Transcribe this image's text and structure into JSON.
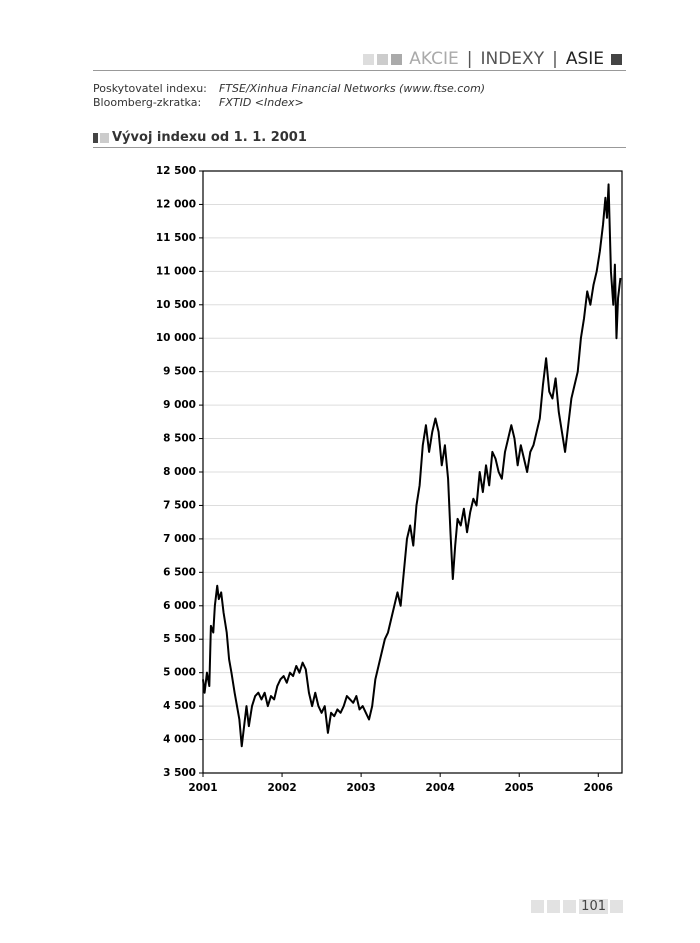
{
  "header": {
    "sections": [
      "AKCIE",
      "INDEXY",
      "ASIE"
    ],
    "separator": "|"
  },
  "info": [
    {
      "label": "Poskytovatel indexu:",
      "value": "FTSE/Xinhua Financial Networks (www.ftse.com)"
    },
    {
      "label": "Bloomberg-zkratka:",
      "value": "FXTID <Index>"
    }
  ],
  "section_title": "Vývoj indexu od 1. 1. 2001",
  "chart_data": {
    "type": "line",
    "color": "#000000",
    "x": [
      2001.0,
      2001.02,
      2001.05,
      2001.08,
      2001.1,
      2001.13,
      2001.15,
      2001.18,
      2001.2,
      2001.23,
      2001.26,
      2001.3,
      2001.33,
      2001.36,
      2001.4,
      2001.43,
      2001.46,
      2001.49,
      2001.52,
      2001.55,
      2001.58,
      2001.62,
      2001.66,
      2001.7,
      2001.74,
      2001.78,
      2001.82,
      2001.86,
      2001.9,
      2001.94,
      2001.98,
      2002.02,
      2002.06,
      2002.1,
      2002.14,
      2002.18,
      2002.22,
      2002.26,
      2002.3,
      2002.34,
      2002.38,
      2002.42,
      2002.46,
      2002.5,
      2002.54,
      2002.58,
      2002.62,
      2002.66,
      2002.7,
      2002.74,
      2002.78,
      2002.82,
      2002.86,
      2002.9,
      2002.94,
      2002.98,
      2003.02,
      2003.06,
      2003.1,
      2003.14,
      2003.18,
      2003.22,
      2003.26,
      2003.3,
      2003.34,
      2003.38,
      2003.42,
      2003.46,
      2003.5,
      2003.54,
      2003.58,
      2003.62,
      2003.66,
      2003.7,
      2003.74,
      2003.78,
      2003.82,
      2003.86,
      2003.9,
      2003.94,
      2003.98,
      2004.02,
      2004.06,
      2004.1,
      2004.13,
      2004.16,
      2004.19,
      2004.22,
      2004.26,
      2004.3,
      2004.34,
      2004.38,
      2004.42,
      2004.46,
      2004.5,
      2004.54,
      2004.58,
      2004.62,
      2004.66,
      2004.7,
      2004.74,
      2004.78,
      2004.82,
      2004.86,
      2004.9,
      2004.94,
      2004.98,
      2005.02,
      2005.06,
      2005.1,
      2005.14,
      2005.18,
      2005.22,
      2005.26,
      2005.3,
      2005.34,
      2005.38,
      2005.42,
      2005.46,
      2005.5,
      2005.54,
      2005.58,
      2005.62,
      2005.66,
      2005.7,
      2005.74,
      2005.78,
      2005.82,
      2005.86,
      2005.9,
      2005.94,
      2005.98,
      2006.02,
      2006.06,
      2006.09,
      2006.11,
      2006.13,
      2006.16,
      2006.19,
      2006.21,
      2006.23,
      2006.25,
      2006.28
    ],
    "values": [
      4900,
      4700,
      5000,
      4800,
      5700,
      5600,
      6000,
      6300,
      6100,
      6200,
      5900,
      5600,
      5200,
      5000,
      4700,
      4500,
      4300,
      3900,
      4200,
      4500,
      4200,
      4500,
      4650,
      4700,
      4600,
      4700,
      4500,
      4650,
      4600,
      4800,
      4900,
      4950,
      4850,
      5000,
      4950,
      5100,
      5000,
      5150,
      5050,
      4700,
      4500,
      4700,
      4500,
      4400,
      4500,
      4100,
      4400,
      4350,
      4450,
      4400,
      4500,
      4650,
      4600,
      4550,
      4650,
      4450,
      4500,
      4400,
      4300,
      4500,
      4900,
      5100,
      5300,
      5500,
      5600,
      5800,
      6000,
      6200,
      6000,
      6500,
      7000,
      7200,
      6900,
      7500,
      7800,
      8400,
      8700,
      8300,
      8600,
      8800,
      8600,
      8100,
      8400,
      7900,
      7100,
      6400,
      6900,
      7300,
      7200,
      7450,
      7100,
      7400,
      7600,
      7500,
      8000,
      7700,
      8100,
      7800,
      8300,
      8200,
      8000,
      7900,
      8300,
      8500,
      8700,
      8500,
      8100,
      8400,
      8200,
      8000,
      8300,
      8400,
      8600,
      8800,
      9300,
      9700,
      9200,
      9100,
      9400,
      8900,
      8600,
      8300,
      8700,
      9100,
      9300,
      9500,
      10000,
      10300,
      10700,
      10500,
      10800,
      11000,
      11300,
      11700,
      12100,
      11800,
      12300,
      11000,
      10500,
      11100,
      10000,
      10600,
      10900
    ],
    "xlim": [
      2001,
      2006.3
    ],
    "xticks": [
      2001,
      2002,
      2003,
      2004,
      2005,
      2006
    ],
    "ylim": [
      3500,
      12500
    ],
    "yticks": [
      {
        "value": 3500,
        "label": "3 500"
      },
      {
        "value": 4000,
        "label": "4 000"
      },
      {
        "value": 4500,
        "label": "4 500"
      },
      {
        "value": 5000,
        "label": "5 000"
      },
      {
        "value": 5500,
        "label": "5 500"
      },
      {
        "value": 6000,
        "label": "6 000"
      },
      {
        "value": 6500,
        "label": "6 500"
      },
      {
        "value": 7000,
        "label": "7 000"
      },
      {
        "value": 7500,
        "label": "7 500"
      },
      {
        "value": 8000,
        "label": "8 000"
      },
      {
        "value": 8500,
        "label": "8 500"
      },
      {
        "value": 9000,
        "label": "9 000"
      },
      {
        "value": 9500,
        "label": "9 500"
      },
      {
        "value": 10000,
        "label": "10 000"
      },
      {
        "value": 10500,
        "label": "10 500"
      },
      {
        "value": 11000,
        "label": "11 000"
      },
      {
        "value": 11500,
        "label": "11 500"
      },
      {
        "value": 12000,
        "label": "12 000"
      },
      {
        "value": 12500,
        "label": "12 500"
      }
    ],
    "grid": true
  },
  "page_number": "101"
}
